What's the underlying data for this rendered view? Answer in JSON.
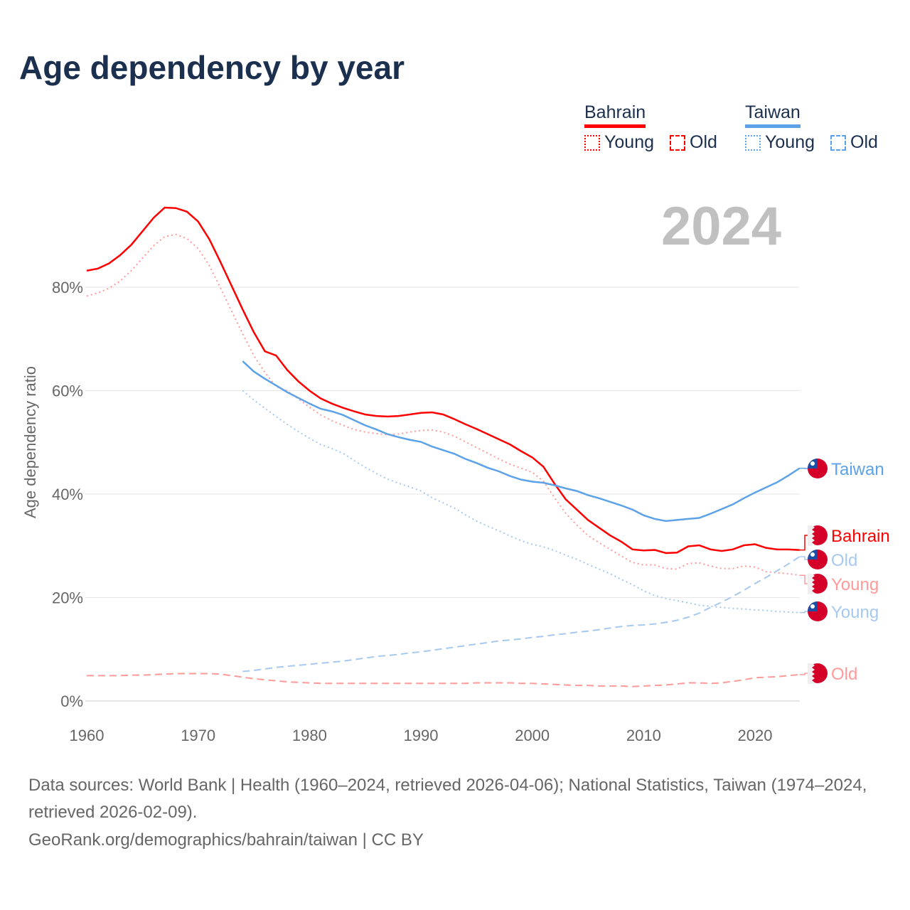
{
  "title": "Age dependency by year",
  "year_label": "2024",
  "legend": {
    "groups": [
      {
        "name": "Bahrain",
        "color": "#ff0000",
        "items": [
          "Young",
          "Old"
        ]
      },
      {
        "name": "Taiwan",
        "color": "#5ba2e8",
        "items": [
          "Young",
          "Old"
        ]
      }
    ]
  },
  "footer": {
    "sources": "Data sources: World Bank | Health (1960–2024, retrieved 2026-04-06); National Statistics, Taiwan (1974–2024, retrieved 2026-02-09).",
    "credit": "GeoRank.org/demographics/bahrain/taiwan | CC BY"
  },
  "chart_data": {
    "type": "line",
    "title": "Age dependency by year",
    "xlabel": "",
    "ylabel": "Age dependency ratio",
    "xlim": [
      1960,
      2024
    ],
    "ylim": [
      0,
      100
    ],
    "x_ticks": [
      "1960",
      "1970",
      "1980",
      "1990",
      "2000",
      "2010",
      "2020"
    ],
    "y_ticks": [
      "0%",
      "20%",
      "40%",
      "60%",
      "80%"
    ],
    "series": [
      {
        "name": "Bahrain",
        "label": "Bahrain",
        "style": "solid",
        "color": "#ff0000",
        "start": 1960,
        "values": [
          83.2,
          83.6,
          84.6,
          86.2,
          88.2,
          90.8,
          93.4,
          95.4,
          95.3,
          94.6,
          92.7,
          89.3,
          84.9,
          80.3,
          75.7,
          71.3,
          67.6,
          66.8,
          64,
          61.8,
          60,
          58.5,
          57.5,
          56.7,
          56,
          55.4,
          55.1,
          55,
          55.1,
          55.4,
          55.7,
          55.8,
          55.4,
          54.5,
          53.5,
          52.6,
          51.6,
          50.6,
          49.6,
          48.3,
          47.1,
          45.3,
          42,
          39,
          37,
          35,
          33.5,
          32,
          30.8,
          29.3,
          29.1,
          29.2,
          28.6,
          28.7,
          29.9,
          30.1,
          29.3,
          29,
          29.3,
          30.1,
          30.3,
          29.6,
          29.3,
          29.3,
          29.2
        ]
      },
      {
        "name": "Bahrain Young",
        "label": "Young",
        "style": "dotted",
        "color": "#ff9a9a",
        "start": 1960,
        "values": [
          78.3,
          78.9,
          79.8,
          81.2,
          83.2,
          85.6,
          88,
          89.8,
          90.2,
          89.4,
          87.5,
          84.2,
          79.9,
          75.4,
          71,
          66.8,
          63.5,
          60.8,
          60,
          58.4,
          56.8,
          55.3,
          54.2,
          53.3,
          52.5,
          52,
          51.7,
          51.5,
          51.6,
          52,
          52.3,
          52.4,
          52,
          51.2,
          50.1,
          49,
          47.9,
          46.8,
          45.8,
          45,
          44.2,
          42.5,
          39.3,
          36.3,
          34,
          32,
          30.6,
          29.3,
          28,
          26.8,
          26.3,
          26.3,
          25.6,
          25.5,
          26.6,
          26.7,
          26.1,
          25.6,
          25.6,
          26.1,
          25.9,
          25,
          24.8,
          24.6,
          24.3
        ]
      },
      {
        "name": "Bahrain Old",
        "label": "Old",
        "style": "dashed",
        "color": "#ff9a9a",
        "start": 1960,
        "values": [
          4.9,
          4.9,
          4.9,
          4.9,
          5,
          5,
          5.1,
          5.2,
          5.3,
          5.3,
          5.3,
          5.3,
          5.2,
          4.9,
          4.6,
          4.3,
          4.1,
          3.9,
          3.7,
          3.6,
          3.5,
          3.4,
          3.4,
          3.4,
          3.4,
          3.4,
          3.4,
          3.4,
          3.4,
          3.4,
          3.4,
          3.4,
          3.4,
          3.4,
          3.4,
          3.5,
          3.5,
          3.5,
          3.5,
          3.4,
          3.4,
          3.3,
          3.2,
          3.1,
          3,
          3,
          2.9,
          2.9,
          2.9,
          2.8,
          2.9,
          3,
          3.1,
          3.3,
          3.5,
          3.5,
          3.4,
          3.5,
          3.8,
          4.1,
          4.5,
          4.6,
          4.7,
          4.9,
          5.1
        ]
      },
      {
        "name": "Taiwan",
        "label": "Taiwan",
        "style": "solid",
        "color": "#5ba2e8",
        "start": 1974,
        "values": [
          65.7,
          63.7,
          62.3,
          61,
          59.7,
          58.6,
          57.5,
          56.5,
          56,
          55.3,
          54.3,
          53.3,
          52.5,
          51.6,
          51,
          50.5,
          50.1,
          49.2,
          48.5,
          47.8,
          46.8,
          46,
          45.1,
          44.4,
          43.5,
          42.8,
          42.4,
          42.2,
          41.7,
          41.1,
          40.6,
          39.8,
          39.2,
          38.5,
          37.8,
          37,
          35.9,
          35.2,
          34.8,
          35,
          35.2,
          35.4,
          36.2,
          37.1,
          38,
          39.2,
          40.3,
          41.3,
          42.3,
          43.6,
          45
        ]
      },
      {
        "name": "Taiwan Young",
        "label": "Young",
        "style": "dotted",
        "color": "#a6c9f0",
        "start": 1974,
        "values": [
          60,
          58.2,
          56.6,
          55,
          53.5,
          52.1,
          50.8,
          49.6,
          48.8,
          47.9,
          46.5,
          45.2,
          44,
          42.9,
          42.1,
          41.4,
          40.6,
          39.3,
          38.3,
          37.3,
          36,
          34.8,
          33.8,
          32.9,
          31.9,
          31,
          30.3,
          29.8,
          29.1,
          28.2,
          27.4,
          26.4,
          25.5,
          24.6,
          23.5,
          22.5,
          21.3,
          20.4,
          19.8,
          19.4,
          19,
          18.5,
          18.3,
          18.1,
          17.9,
          17.8,
          17.6,
          17.5,
          17.3,
          17.2,
          17.1
        ]
      },
      {
        "name": "Taiwan Old",
        "label": "Old",
        "style": "dashed",
        "color": "#a6c9f0",
        "start": 1974,
        "values": [
          5.7,
          5.9,
          6.2,
          6.5,
          6.7,
          6.9,
          7.1,
          7.3,
          7.5,
          7.7,
          8,
          8.3,
          8.6,
          8.8,
          9,
          9.3,
          9.5,
          9.8,
          10.1,
          10.4,
          10.7,
          11,
          11.3,
          11.6,
          11.8,
          12,
          12.3,
          12.5,
          12.8,
          13,
          13.3,
          13.5,
          13.8,
          14.1,
          14.4,
          14.6,
          14.7,
          14.9,
          15.2,
          15.6,
          16.2,
          17,
          18.1,
          19.1,
          20.2,
          21.4,
          22.7,
          23.9,
          25.2,
          26.5,
          27.9
        ]
      }
    ]
  }
}
